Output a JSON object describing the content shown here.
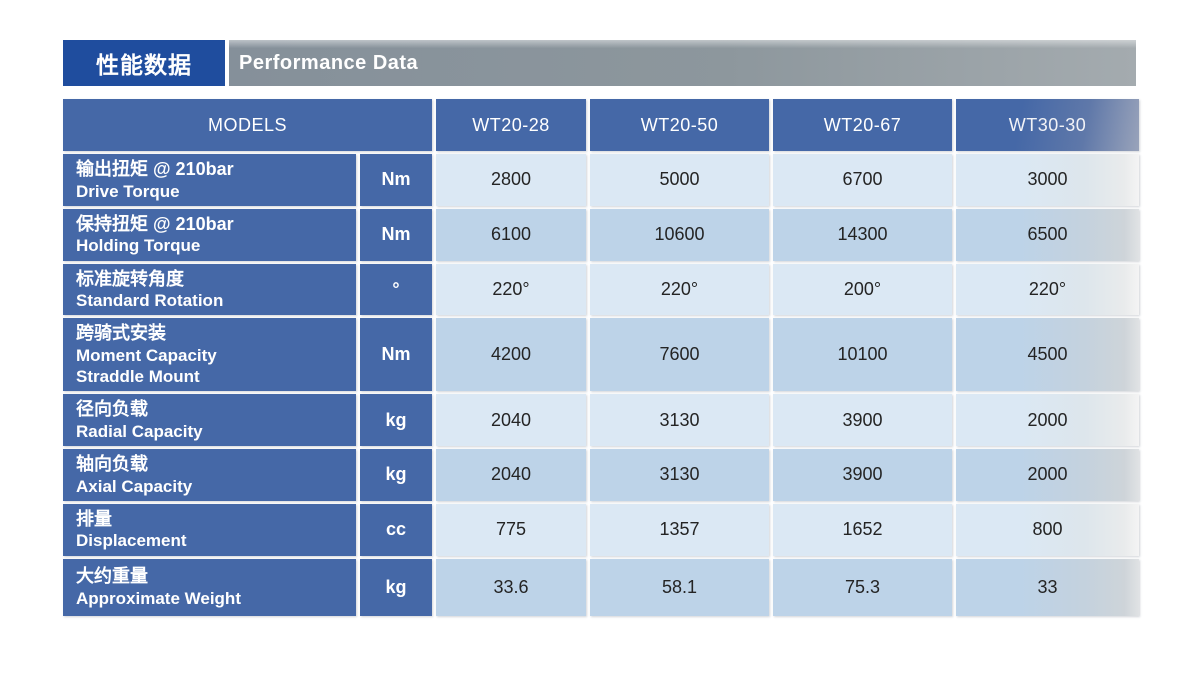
{
  "header": {
    "title_zh": "性能数据",
    "title_en": "Performance Data",
    "accent_blue": "#1f4d9e",
    "bar_gray_left": "#85909a",
    "bar_gray_right": "#a4abaf"
  },
  "table": {
    "models_label": "MODELS",
    "models": [
      "WT20-28",
      "WT20-50",
      "WT20-67",
      "WT30-30"
    ],
    "colors": {
      "cell_blue": "#4568a7",
      "row_light": "#dbe8f4",
      "row_dark": "#bdd3e8",
      "value_text": "#242424"
    },
    "rows": [
      {
        "label_zh": "输出扭矩 @ 210bar",
        "label_en": "Drive Torque",
        "unit": "Nm",
        "values": [
          "2800",
          "5000",
          "6700",
          "3000"
        ]
      },
      {
        "label_zh": "保持扭矩 @ 210bar",
        "label_en": "Holding Torque",
        "unit": "Nm",
        "values": [
          "6100",
          "10600",
          "14300",
          "6500"
        ]
      },
      {
        "label_zh": "标准旋转角度",
        "label_en": "Standard Rotation",
        "unit": "°",
        "values": [
          "220°",
          "220°",
          "200°",
          "220°"
        ]
      },
      {
        "label_zh": "跨骑式安装",
        "label_en": "Moment Capacity\nStraddle Mount",
        "unit": "Nm",
        "values": [
          "4200",
          "7600",
          "10100",
          "4500"
        ]
      },
      {
        "label_zh": "径向负载",
        "label_en": "Radial Capacity",
        "unit": "kg",
        "values": [
          "2040",
          "3130",
          "3900",
          "2000"
        ]
      },
      {
        "label_zh": "轴向负载",
        "label_en": "Axial Capacity",
        "unit": "kg",
        "values": [
          "2040",
          "3130",
          "3900",
          "2000"
        ]
      },
      {
        "label_zh": "排量",
        "label_en": "Displacement",
        "unit": "cc",
        "values": [
          "775",
          "1357",
          "1652",
          "800"
        ]
      },
      {
        "label_zh": "大约重量",
        "label_en": "Approximate Weight",
        "unit": "kg",
        "values": [
          "33.6",
          "58.1",
          "75.3",
          "33"
        ]
      }
    ]
  }
}
